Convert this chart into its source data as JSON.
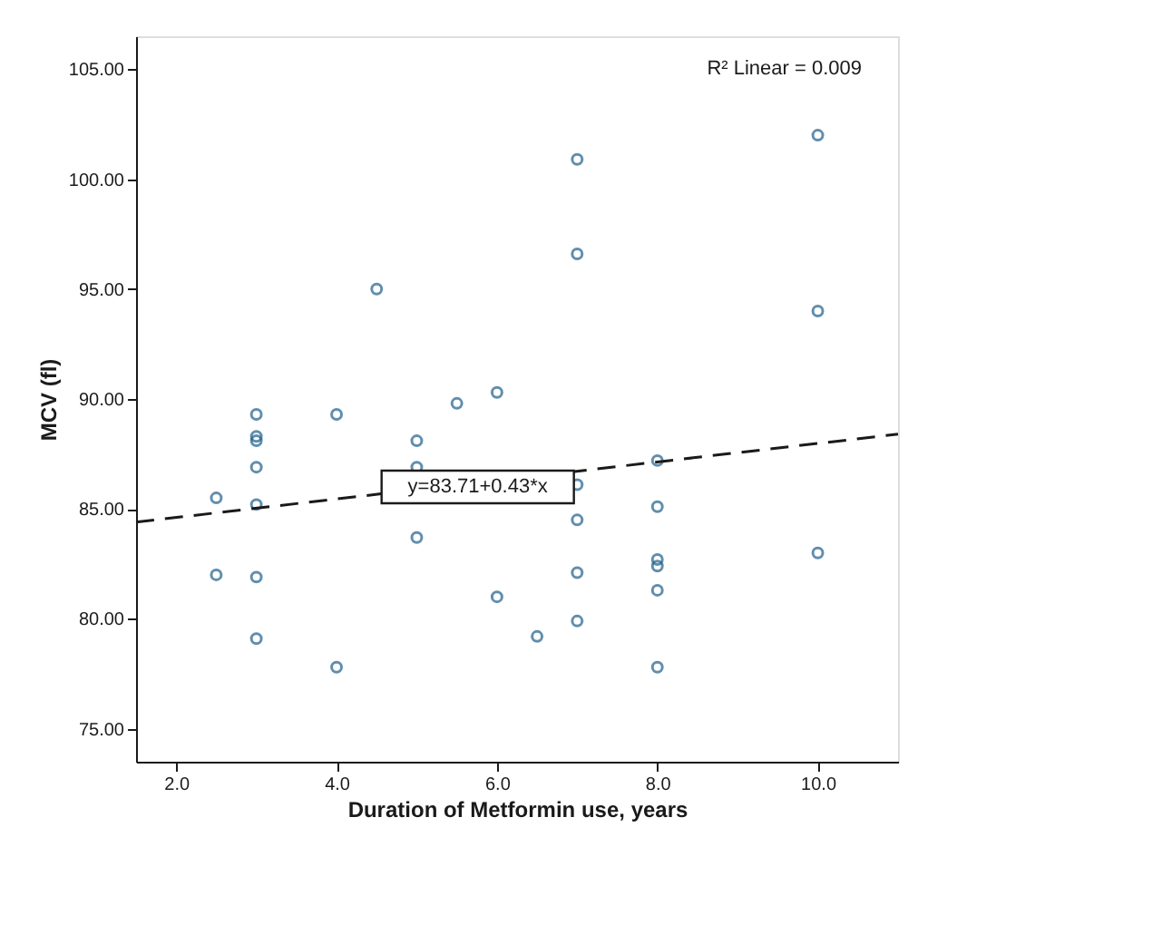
{
  "chart_data": {
    "type": "scatter",
    "xlabel": "Duration of Metformin use, years",
    "ylabel": "MCV (fl)",
    "xlim": [
      1.5,
      11.0
    ],
    "ylim": [
      73.5,
      106.5
    ],
    "xticks": [
      {
        "value": 2,
        "label": "2.0"
      },
      {
        "value": 4,
        "label": "4.0"
      },
      {
        "value": 6,
        "label": "6.0"
      },
      {
        "value": 8,
        "label": "8.0"
      },
      {
        "value": 10,
        "label": "10.0"
      }
    ],
    "yticks": [
      {
        "value": 75,
        "label": "75.00"
      },
      {
        "value": 80,
        "label": "80.00"
      },
      {
        "value": 85,
        "label": "85.00"
      },
      {
        "value": 90,
        "label": "90.00"
      },
      {
        "value": 95,
        "label": "95.00"
      },
      {
        "value": 100,
        "label": "100.00"
      },
      {
        "value": 105,
        "label": "105.00"
      }
    ],
    "grid": false,
    "marker": "circle",
    "series": [
      {
        "type": "scatter",
        "color": "#1f5f8b",
        "x": [
          2.5,
          2.5,
          3,
          3,
          3,
          3,
          3,
          3,
          3,
          4,
          4,
          4.5,
          5,
          5,
          5,
          5.5,
          6,
          6,
          6.5,
          7,
          7,
          7,
          7,
          7,
          7,
          8,
          8,
          8,
          8,
          8,
          8,
          10,
          10,
          10
        ],
        "values": [
          82.0,
          85.5,
          89.3,
          88.3,
          88.1,
          86.9,
          85.2,
          81.9,
          79.1,
          89.3,
          77.8,
          95.0,
          88.1,
          86.9,
          83.7,
          89.8,
          90.3,
          81.0,
          79.2,
          100.9,
          96.6,
          86.1,
          84.5,
          82.1,
          79.9,
          87.2,
          85.1,
          82.7,
          82.4,
          81.3,
          77.8,
          102.0,
          94.0,
          83.0
        ]
      },
      {
        "type": "line",
        "color": "#1a1a1a",
        "line_style": "dashed",
        "marker": "none",
        "x": [
          1.5,
          11.0
        ],
        "values": [
          84.4,
          88.4
        ]
      }
    ],
    "annotations": [
      "R² Linear = 0.009",
      {
        "text": "y=83.71+0.43*x",
        "x": 5.76,
        "y": 86.0
      }
    ]
  }
}
